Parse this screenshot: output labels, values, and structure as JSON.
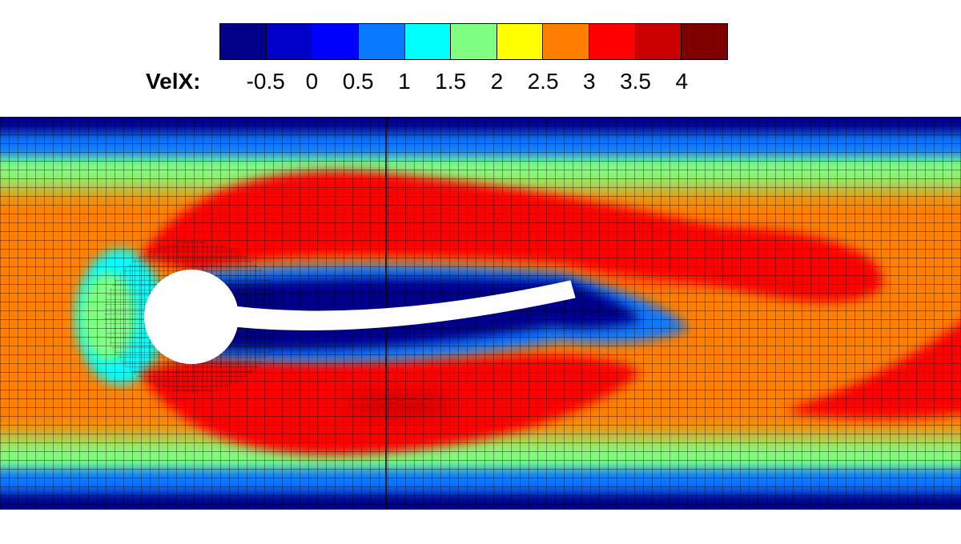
{
  "legend": {
    "variable": "VelX:",
    "levels": [
      -0.75,
      -0.25,
      0.25,
      0.75,
      1.25,
      1.75,
      2.25,
      2.75,
      3.25,
      3.75,
      4.25
    ],
    "colors": [
      "#00008b",
      "#0000c8",
      "#0000ff",
      "#0a78ff",
      "#00ffff",
      "#80ff80",
      "#ffff00",
      "#ff8000",
      "#ff0000",
      "#c80000",
      "#800000"
    ],
    "ticks": [
      "-0.5",
      "0",
      "0.5",
      "1",
      "1.5",
      "2",
      "2.5",
      "3",
      "3.5",
      "4"
    ]
  },
  "chart_data": {
    "type": "heatmap",
    "variable": "VelX",
    "colormap_min": -0.75,
    "colormap_max": 4.25,
    "regions": [
      {
        "zone": "upper and lower channel walls",
        "VelX": -0.3
      },
      {
        "zone": "free stream, inlet and outer channel",
        "VelX": 2.8
      },
      {
        "zone": "upper shear layer band",
        "VelX": 3.4
      },
      {
        "zone": "lower shear layer band",
        "VelX": 3.4
      },
      {
        "zone": "downstream upper jet band",
        "VelX": 3.7
      },
      {
        "zone": "downstream lower jet band",
        "VelX": 3.5
      },
      {
        "zone": "wake behind cylinder and flexible splitter plate",
        "VelX": -0.4
      },
      {
        "zone": "stagnation point upstream of cylinder",
        "VelX": 1.5
      }
    ],
    "title": "",
    "xlabel": "",
    "ylabel": ""
  }
}
